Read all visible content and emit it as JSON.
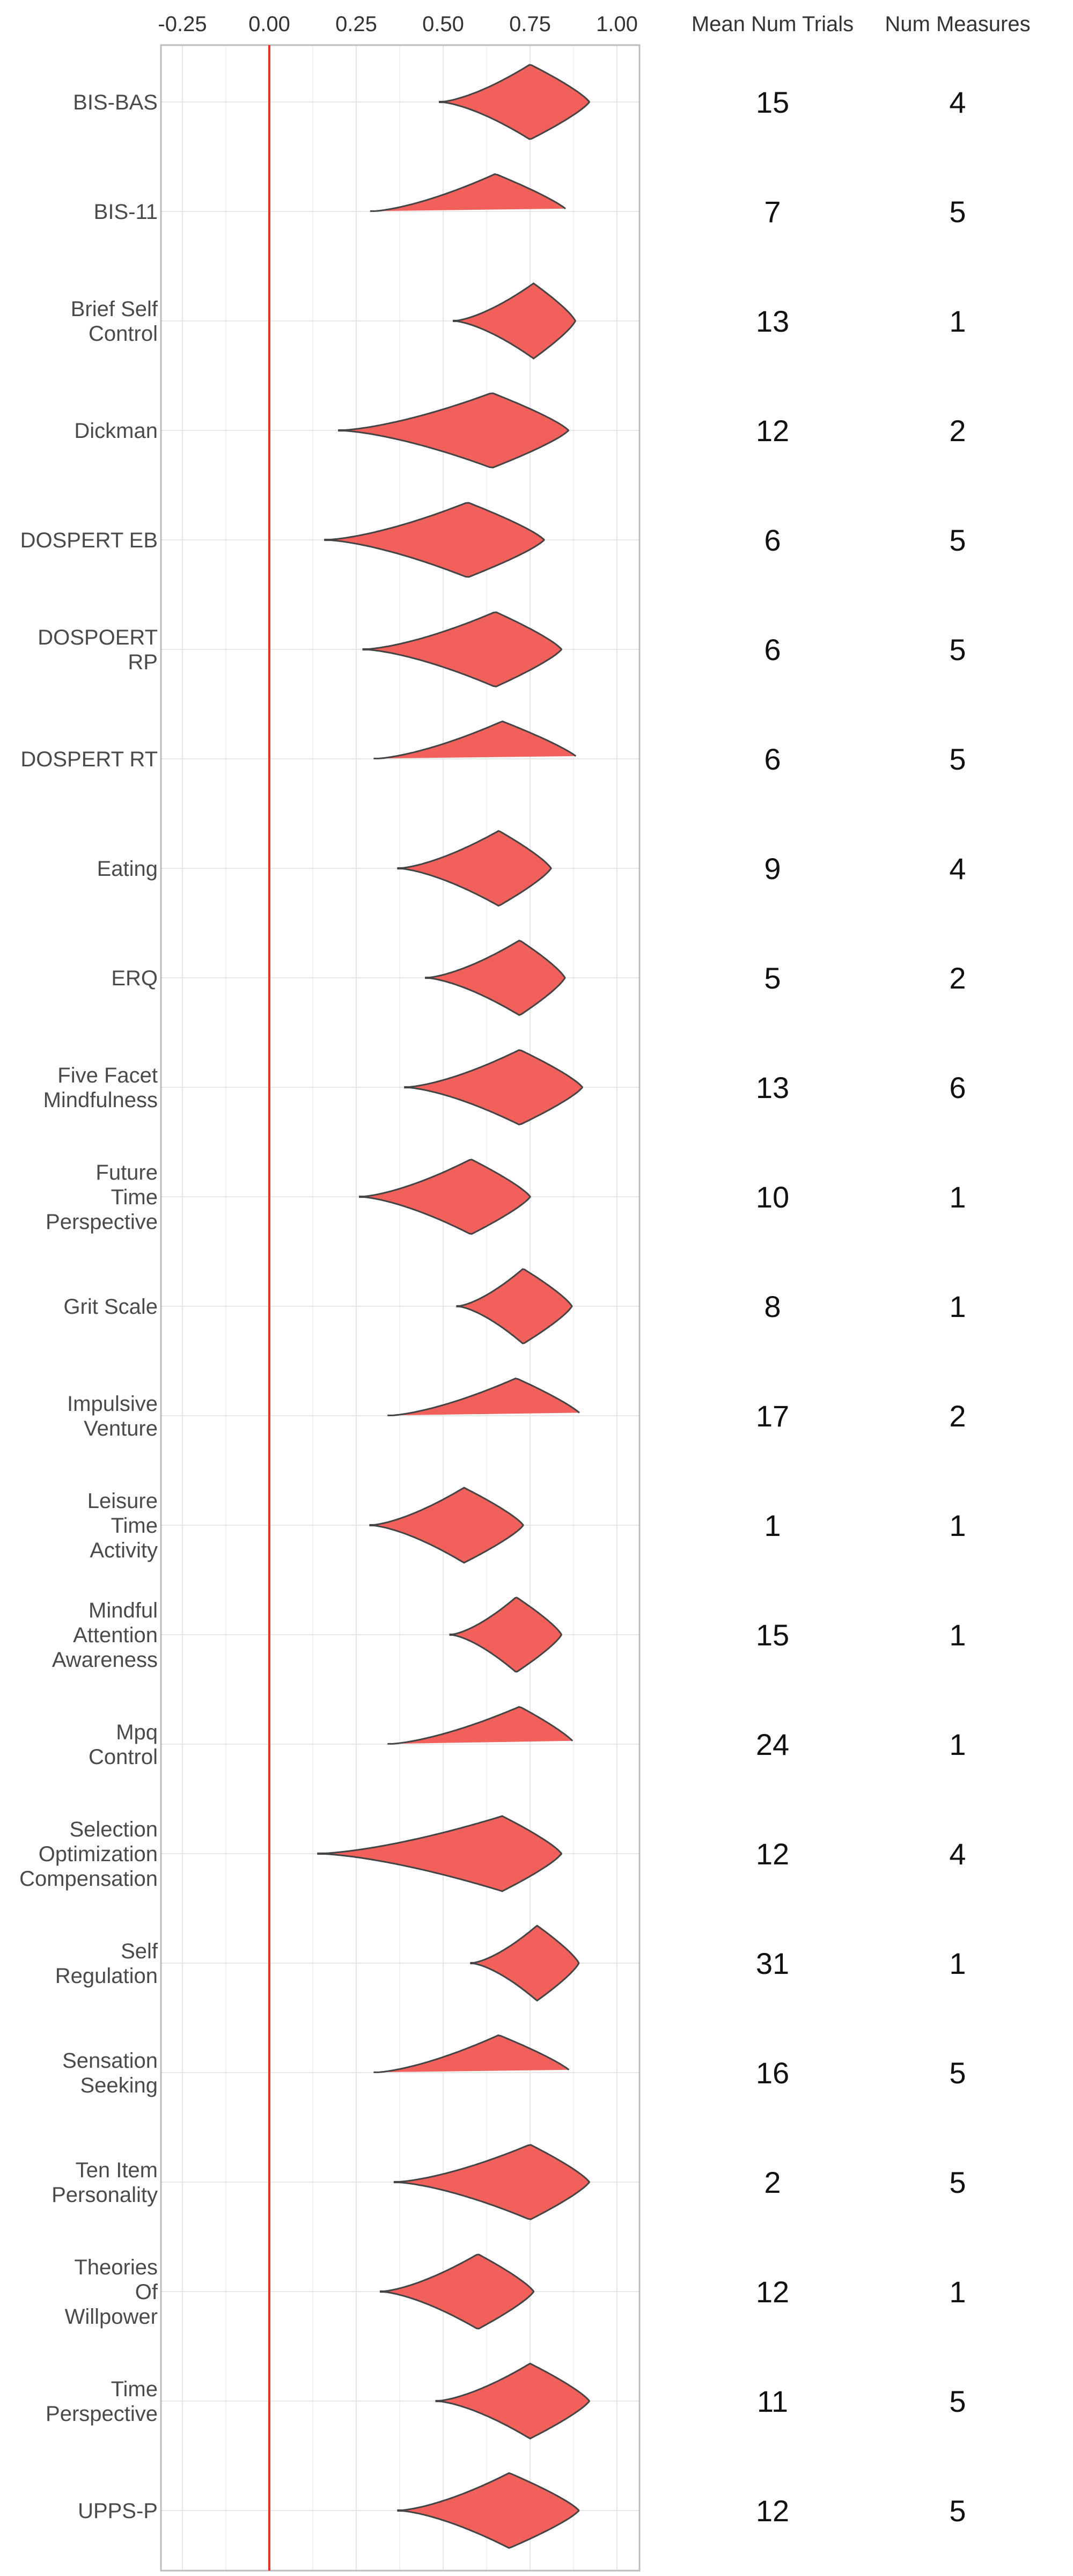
{
  "chart_data": {
    "type": "violin",
    "title": "",
    "xlabel": "",
    "ylabel": "",
    "xlim": [
      -0.3,
      1.06
    ],
    "x_ticks": [
      -0.25,
      0.0,
      0.25,
      0.5,
      0.75,
      1.0
    ],
    "x_tick_labels": [
      "-0.25",
      "0.00",
      "0.25",
      "0.50",
      "0.75",
      "1.00"
    ],
    "reference_line": {
      "x": 0.0,
      "color": "#e8302b"
    },
    "fill_color": "#f2605c",
    "grid": true,
    "columns": [
      "Mean Num Trials",
      "Num Measures"
    ],
    "categories": [
      {
        "label": [
          "BIS-BAS"
        ],
        "range": [
          0.49,
          0.92
        ],
        "mode": 0.75,
        "mean_num_trials": "15",
        "num_measures": "4"
      },
      {
        "label": [
          "BIS-11"
        ],
        "range": [
          0.29,
          0.86
        ],
        "mode": 0.65,
        "mean_num_trials": "7",
        "num_measures": "5"
      },
      {
        "label": [
          "Brief Self",
          "Control"
        ],
        "range": [
          0.53,
          0.88
        ],
        "mode": 0.76,
        "mean_num_trials": "13",
        "num_measures": "1"
      },
      {
        "label": [
          "Dickman"
        ],
        "range": [
          0.2,
          0.86
        ],
        "mode": 0.64,
        "mean_num_trials": "12",
        "num_measures": "2"
      },
      {
        "label": [
          "DOSPERT EB"
        ],
        "range": [
          0.16,
          0.79
        ],
        "mode": 0.57,
        "mean_num_trials": "6",
        "num_measures": "5"
      },
      {
        "label": [
          "DOSPOERT",
          "RP"
        ],
        "range": [
          0.27,
          0.84
        ],
        "mode": 0.65,
        "mean_num_trials": "6",
        "num_measures": "5"
      },
      {
        "label": [
          "DOSPERT RT"
        ],
        "range": [
          0.3,
          0.89
        ],
        "mode": 0.67,
        "mean_num_trials": "6",
        "num_measures": "5"
      },
      {
        "label": [
          "Eating"
        ],
        "range": [
          0.37,
          0.81
        ],
        "mode": 0.66,
        "mean_num_trials": "9",
        "num_measures": "4"
      },
      {
        "label": [
          "ERQ"
        ],
        "range": [
          0.45,
          0.85
        ],
        "mode": 0.72,
        "mean_num_trials": "5",
        "num_measures": "2"
      },
      {
        "label": [
          "Five Facet",
          "Mindfulness"
        ],
        "range": [
          0.39,
          0.9
        ],
        "mode": 0.72,
        "mean_num_trials": "13",
        "num_measures": "6"
      },
      {
        "label": [
          "Future",
          "Time",
          "Perspective"
        ],
        "range": [
          0.26,
          0.75
        ],
        "mode": 0.58,
        "mean_num_trials": "10",
        "num_measures": "1"
      },
      {
        "label": [
          "Grit Scale"
        ],
        "range": [
          0.54,
          0.87
        ],
        "mode": 0.73,
        "mean_num_trials": "8",
        "num_measures": "1"
      },
      {
        "label": [
          "Impulsive",
          "Venture"
        ],
        "range": [
          0.34,
          0.9
        ],
        "mode": 0.71,
        "mean_num_trials": "17",
        "num_measures": "2"
      },
      {
        "label": [
          "Leisure",
          "Time",
          "Activity"
        ],
        "range": [
          0.29,
          0.73
        ],
        "mode": 0.56,
        "mean_num_trials": "1",
        "num_measures": "1"
      },
      {
        "label": [
          "Mindful",
          "Attention",
          "Awareness"
        ],
        "range": [
          0.52,
          0.84
        ],
        "mode": 0.71,
        "mean_num_trials": "15",
        "num_measures": "1"
      },
      {
        "label": [
          "Mpq",
          "Control"
        ],
        "range": [
          0.34,
          0.88
        ],
        "mode": 0.72,
        "mean_num_trials": "24",
        "num_measures": "1"
      },
      {
        "label": [
          "Selection",
          "Optimization",
          "Compensation"
        ],
        "range": [
          0.14,
          0.84
        ],
        "mode": 0.67,
        "mean_num_trials": "12",
        "num_measures": "4"
      },
      {
        "label": [
          "Self",
          "Regulation"
        ],
        "range": [
          0.58,
          0.89
        ],
        "mode": 0.77,
        "mean_num_trials": "31",
        "num_measures": "1"
      },
      {
        "label": [
          "Sensation",
          "Seeking"
        ],
        "range": [
          0.3,
          0.87
        ],
        "mode": 0.66,
        "mean_num_trials": "16",
        "num_measures": "5"
      },
      {
        "label": [
          "Ten Item",
          "Personality"
        ],
        "range": [
          0.36,
          0.92
        ],
        "mode": 0.75,
        "mean_num_trials": "2",
        "num_measures": "5"
      },
      {
        "label": [
          "Theories",
          "Of",
          "Willpower"
        ],
        "range": [
          0.32,
          0.76
        ],
        "mode": 0.6,
        "mean_num_trials": "12",
        "num_measures": "1"
      },
      {
        "label": [
          "Time",
          "Perspective"
        ],
        "range": [
          0.48,
          0.92
        ],
        "mode": 0.75,
        "mean_num_trials": "11",
        "num_measures": "5"
      },
      {
        "label": [
          "UPPS-P"
        ],
        "range": [
          0.37,
          0.89
        ],
        "mode": 0.69,
        "mean_num_trials": "12",
        "num_measures": "5"
      }
    ]
  }
}
